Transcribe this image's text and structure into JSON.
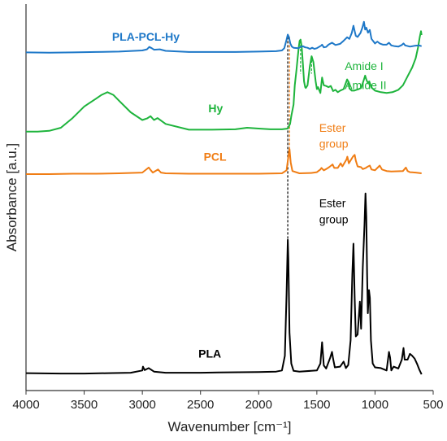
{
  "chart_data": {
    "type": "line",
    "title": "",
    "xlabel": "Wavenumber [cm⁻¹]",
    "ylabel": "Absorbance [a.u.]",
    "xlim": [
      4000,
      500
    ],
    "x_reversed": true,
    "xticks": [
      4000,
      3500,
      3000,
      2500,
      2000,
      1500,
      1000,
      500
    ],
    "xtick_labels": [
      "4000",
      "3500",
      "3000",
      "2500",
      "2000",
      "1500",
      "1000",
      "500"
    ],
    "ylim": [
      0,
      100
    ],
    "yticks_visible": false,
    "grid": false,
    "legend": "none",
    "series": [
      {
        "name": "PLA",
        "color": "#000000",
        "points": [
          [
            4000,
            4.5
          ],
          [
            3700,
            4.4
          ],
          [
            3500,
            4.4
          ],
          [
            3300,
            4.5
          ],
          [
            3100,
            4.6
          ],
          [
            3000,
            5.2
          ],
          [
            2995,
            6.2
          ],
          [
            2980,
            5.3
          ],
          [
            2945,
            5.8
          ],
          [
            2900,
            4.9
          ],
          [
            2800,
            4.6
          ],
          [
            2500,
            4.6
          ],
          [
            2350,
            4.7
          ],
          [
            2000,
            4.8
          ],
          [
            1850,
            4.9
          ],
          [
            1800,
            5.2
          ],
          [
            1775,
            9
          ],
          [
            1760,
            25
          ],
          [
            1750,
            39
          ],
          [
            1745,
            34
          ],
          [
            1735,
            15
          ],
          [
            1720,
            7
          ],
          [
            1700,
            5.1
          ],
          [
            1650,
            4.9
          ],
          [
            1500,
            5.2
          ],
          [
            1470,
            7
          ],
          [
            1455,
            12.5
          ],
          [
            1440,
            6.5
          ],
          [
            1420,
            5.7
          ],
          [
            1385,
            8.5
          ],
          [
            1370,
            10
          ],
          [
            1360,
            8.2
          ],
          [
            1345,
            6
          ],
          [
            1300,
            6.2
          ],
          [
            1270,
            7.5
          ],
          [
            1250,
            5.8
          ],
          [
            1230,
            6.6
          ],
          [
            1210,
            13
          ],
          [
            1195,
            30
          ],
          [
            1185,
            38
          ],
          [
            1175,
            24
          ],
          [
            1165,
            14
          ],
          [
            1150,
            14.5
          ],
          [
            1130,
            23
          ],
          [
            1120,
            16
          ],
          [
            1105,
            32
          ],
          [
            1090,
            43
          ],
          [
            1082,
            51
          ],
          [
            1075,
            45
          ],
          [
            1068,
            30
          ],
          [
            1062,
            20
          ],
          [
            1052,
            26
          ],
          [
            1044,
            24
          ],
          [
            1035,
            13
          ],
          [
            1020,
            7
          ],
          [
            1000,
            6
          ],
          [
            950,
            5.8
          ],
          [
            900,
            5.2
          ],
          [
            880,
            10
          ],
          [
            870,
            8.5
          ],
          [
            860,
            5.2
          ],
          [
            840,
            6.2
          ],
          [
            800,
            5.7
          ],
          [
            770,
            8
          ],
          [
            755,
            11
          ],
          [
            745,
            8
          ],
          [
            720,
            8
          ],
          [
            700,
            9.5
          ],
          [
            680,
            9
          ],
          [
            660,
            8.3
          ],
          [
            640,
            7
          ],
          [
            620,
            5.5
          ],
          [
            600,
            4.2
          ]
        ]
      },
      {
        "name": "PCL",
        "color": "#F07D14",
        "points": [
          [
            4000,
            56
          ],
          [
            3800,
            56
          ],
          [
            3600,
            56.1
          ],
          [
            3400,
            56.1
          ],
          [
            3200,
            56.2
          ],
          [
            3000,
            56.4
          ],
          [
            2945,
            57.7
          ],
          [
            2930,
            57.1
          ],
          [
            2910,
            56.4
          ],
          [
            2865,
            57.2
          ],
          [
            2840,
            56.4
          ],
          [
            2800,
            56.2
          ],
          [
            2600,
            56.1
          ],
          [
            2300,
            56.1
          ],
          [
            2000,
            56.1
          ],
          [
            1800,
            56.2
          ],
          [
            1760,
            57
          ],
          [
            1745,
            60.5
          ],
          [
            1735,
            62.5
          ],
          [
            1725,
            59
          ],
          [
            1710,
            56.8
          ],
          [
            1650,
            56.2
          ],
          [
            1550,
            56.3
          ],
          [
            1500,
            56.5
          ],
          [
            1470,
            57.2
          ],
          [
            1460,
            57.6
          ],
          [
            1440,
            57
          ],
          [
            1420,
            57.3
          ],
          [
            1395,
            57.8
          ],
          [
            1365,
            58.5
          ],
          [
            1350,
            57.6
          ],
          [
            1320,
            57.6
          ],
          [
            1295,
            58.8
          ],
          [
            1280,
            58
          ],
          [
            1245,
            59.8
          ],
          [
            1238,
            60.5
          ],
          [
            1225,
            58.8
          ],
          [
            1190,
            60.5
          ],
          [
            1175,
            61
          ],
          [
            1165,
            59.5
          ],
          [
            1150,
            58
          ],
          [
            1120,
            57.8
          ],
          [
            1105,
            57.3
          ],
          [
            1080,
            57.6
          ],
          [
            1065,
            57.9
          ],
          [
            1045,
            58.2
          ],
          [
            1030,
            57.2
          ],
          [
            1000,
            57
          ],
          [
            960,
            58.2
          ],
          [
            940,
            57.2
          ],
          [
            900,
            56.8
          ],
          [
            860,
            56.7
          ],
          [
            760,
            56.8
          ],
          [
            735,
            57.7
          ],
          [
            720,
            56.8
          ],
          [
            700,
            56.5
          ],
          [
            650,
            56.4
          ],
          [
            600,
            56.2
          ]
        ]
      },
      {
        "name": "Hy",
        "color": "#1EB43C",
        "points": [
          [
            4000,
            67
          ],
          [
            3900,
            67
          ],
          [
            3800,
            67.2
          ],
          [
            3700,
            68
          ],
          [
            3600,
            70.5
          ],
          [
            3500,
            73.5
          ],
          [
            3400,
            75.5
          ],
          [
            3350,
            76.5
          ],
          [
            3300,
            77.2
          ],
          [
            3250,
            76.5
          ],
          [
            3200,
            75
          ],
          [
            3100,
            72
          ],
          [
            3000,
            70
          ],
          [
            2960,
            70.4
          ],
          [
            2930,
            71
          ],
          [
            2900,
            70
          ],
          [
            2870,
            70.5
          ],
          [
            2800,
            69
          ],
          [
            2600,
            67.5
          ],
          [
            2400,
            67.5
          ],
          [
            2200,
            67.6
          ],
          [
            2100,
            68
          ],
          [
            2000,
            67.8
          ],
          [
            1900,
            67.6
          ],
          [
            1800,
            67.6
          ],
          [
            1750,
            67.8
          ],
          [
            1730,
            69
          ],
          [
            1720,
            71
          ],
          [
            1700,
            74
          ],
          [
            1690,
            79
          ],
          [
            1675,
            83
          ],
          [
            1665,
            86
          ],
          [
            1655,
            89
          ],
          [
            1648,
            90.5
          ],
          [
            1640,
            90.8
          ],
          [
            1630,
            89
          ],
          [
            1620,
            84.5
          ],
          [
            1610,
            80
          ],
          [
            1600,
            78.5
          ],
          [
            1595,
            78.3
          ],
          [
            1580,
            79
          ],
          [
            1560,
            84
          ],
          [
            1545,
            86.5
          ],
          [
            1530,
            85
          ],
          [
            1510,
            80
          ],
          [
            1500,
            78
          ],
          [
            1490,
            78.5
          ],
          [
            1470,
            77
          ],
          [
            1455,
            81
          ],
          [
            1440,
            79
          ],
          [
            1420,
            78.8
          ],
          [
            1400,
            78.5
          ],
          [
            1380,
            78.8
          ],
          [
            1360,
            77.5
          ],
          [
            1340,
            77.8
          ],
          [
            1320,
            77.2
          ],
          [
            1300,
            77.6
          ],
          [
            1270,
            78
          ],
          [
            1240,
            80.5
          ],
          [
            1230,
            80
          ],
          [
            1220,
            78.2
          ],
          [
            1200,
            77.6
          ],
          [
            1180,
            77.6
          ],
          [
            1160,
            77.8
          ],
          [
            1140,
            78
          ],
          [
            1120,
            78.3
          ],
          [
            1100,
            80
          ],
          [
            1085,
            81.5
          ],
          [
            1075,
            80.5
          ],
          [
            1060,
            79.5
          ],
          [
            1050,
            80
          ],
          [
            1030,
            78.4
          ],
          [
            1000,
            77.6
          ],
          [
            950,
            77.2
          ],
          [
            900,
            77
          ],
          [
            850,
            77.2
          ],
          [
            800,
            77.8
          ],
          [
            760,
            79
          ],
          [
            720,
            81.3
          ],
          [
            680,
            83.6
          ],
          [
            650,
            86
          ],
          [
            630,
            88.8
          ],
          [
            615,
            91.5
          ],
          [
            605,
            93
          ],
          [
            600,
            92
          ]
        ]
      },
      {
        "name": "PLA-PCL-Hy",
        "color": "#1E78C8",
        "points": [
          [
            4000,
            87.5
          ],
          [
            3800,
            87.4
          ],
          [
            3600,
            87.5
          ],
          [
            3400,
            87.6
          ],
          [
            3200,
            87.7
          ],
          [
            3000,
            88
          ],
          [
            2960,
            88.3
          ],
          [
            2940,
            88.9
          ],
          [
            2920,
            88.6
          ],
          [
            2900,
            88.2
          ],
          [
            2850,
            88.3
          ],
          [
            2800,
            87.9
          ],
          [
            2600,
            87.6
          ],
          [
            2400,
            87.6
          ],
          [
            2200,
            87.6
          ],
          [
            2000,
            87.7
          ],
          [
            1850,
            87.8
          ],
          [
            1800,
            88
          ],
          [
            1780,
            88.6
          ],
          [
            1760,
            90.8
          ],
          [
            1750,
            92.1
          ],
          [
            1740,
            91.5
          ],
          [
            1728,
            89.8
          ],
          [
            1715,
            89
          ],
          [
            1700,
            88.7
          ],
          [
            1660,
            88.6
          ],
          [
            1640,
            88.9
          ],
          [
            1620,
            89.1
          ],
          [
            1600,
            88.8
          ],
          [
            1580,
            88.7
          ],
          [
            1560,
            88.4
          ],
          [
            1540,
            88.7
          ],
          [
            1520,
            88.4
          ],
          [
            1500,
            88.6
          ],
          [
            1460,
            89.3
          ],
          [
            1455,
            89.5
          ],
          [
            1440,
            88.8
          ],
          [
            1420,
            88.9
          ],
          [
            1400,
            89.5
          ],
          [
            1370,
            90
          ],
          [
            1340,
            89.4
          ],
          [
            1300,
            89.7
          ],
          [
            1270,
            90.5
          ],
          [
            1240,
            91.4
          ],
          [
            1220,
            91
          ],
          [
            1200,
            92.5
          ],
          [
            1185,
            94.4
          ],
          [
            1175,
            93
          ],
          [
            1165,
            91.8
          ],
          [
            1150,
            91.5
          ],
          [
            1125,
            92.5
          ],
          [
            1110,
            93.8
          ],
          [
            1095,
            95.4
          ],
          [
            1085,
            93.4
          ],
          [
            1075,
            93.9
          ],
          [
            1060,
            92.6
          ],
          [
            1045,
            93.3
          ],
          [
            1030,
            91
          ],
          [
            1000,
            89.8
          ],
          [
            980,
            90.3
          ],
          [
            960,
            89.8
          ],
          [
            930,
            89.5
          ],
          [
            900,
            89.5
          ],
          [
            880,
            90
          ],
          [
            860,
            89.3
          ],
          [
            830,
            89.1
          ],
          [
            800,
            89
          ],
          [
            770,
            89.4
          ],
          [
            755,
            89.8
          ],
          [
            740,
            89.3
          ],
          [
            700,
            89
          ],
          [
            660,
            89.2
          ],
          [
            620,
            89.3
          ],
          [
            600,
            89.1
          ]
        ]
      }
    ],
    "series_labels": [
      {
        "series": "PLA-PCL-Hy",
        "text": "PLA-PCL-Hy",
        "x": 2970,
        "y": 90.5
      },
      {
        "series": "Hy",
        "text": "Hy",
        "x": 2370,
        "y": 72
      },
      {
        "series": "PCL",
        "text": "PCL",
        "x": 2375,
        "y": 59.5
      },
      {
        "series": "PLA",
        "text": "PLA",
        "x": 2420,
        "y": 8.5
      }
    ],
    "annotations": [
      {
        "text": "Amide I",
        "color": "#1EB43C",
        "x": 1260,
        "y": 83,
        "line_x": [
          1640
        ],
        "line_y": [
          90.5,
          82
        ]
      },
      {
        "text": "Amide II",
        "color": "#1EB43C",
        "x": 1260,
        "y": 78,
        "line_x": [
          1545
        ],
        "line_y": [
          86.5,
          82
        ]
      },
      {
        "text": "Ester",
        "color": "#F07D14",
        "x": 1480,
        "y": 67,
        "line_x": [
          1735
        ],
        "line_y": [
          91.5,
          62.5
        ]
      },
      {
        "text": "group",
        "color": "#F07D14",
        "x": 1480,
        "y": 62.8,
        "line_x": [],
        "line_y": []
      },
      {
        "text": "Ester",
        "color": "#000000",
        "x": 1480,
        "y": 47.5,
        "line_x": [
          1750
        ],
        "line_y": [
          91.5,
          39
        ]
      },
      {
        "text": "group",
        "color": "#000000",
        "x": 1480,
        "y": 43.3,
        "line_x": [],
        "line_y": []
      }
    ]
  }
}
